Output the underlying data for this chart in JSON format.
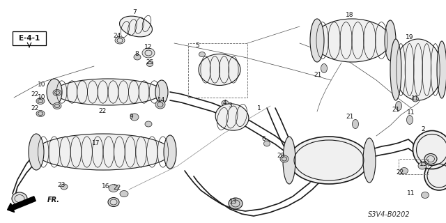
{
  "bg_color": "#ffffff",
  "diagram_code": "S3V4-B0202",
  "line_color": "#1a1a1a",
  "label_fontsize": 6.5,
  "label_color": "#111111",
  "figsize": [
    6.4,
    3.2
  ],
  "dpi": 100
}
